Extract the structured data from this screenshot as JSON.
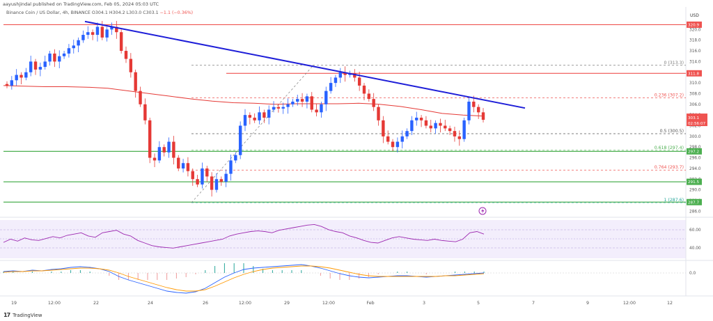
{
  "header": {
    "published_by": "aayushjindal published on TradingView.com, Feb 05, 2024 05:03 UTC",
    "symbol_prefix": "Binance Coin / US Dollar, 4h, BINANCE",
    "ohlc": "O304.1 H304.2 L303.0 C303.1",
    "change": "−1.1 (−0.36%)",
    "currency": "USD"
  },
  "footer": {
    "brand": "TradingView"
  },
  "chart_data": {
    "type": "candlestick",
    "y_range": [
      285,
      322
    ],
    "price_ticks": [
      "320.0",
      "318.0",
      "316.0",
      "314.0",
      "312.0",
      "310.0",
      "308.0",
      "306.0",
      "304.0",
      "302.0",
      "300.0",
      "298.0",
      "296.0",
      "294.0",
      "292.0",
      "290.0",
      "288.0",
      "286.0"
    ],
    "x_labels": [
      "19",
      "12:00",
      "22",
      "24",
      "26",
      "12:00",
      "29",
      "12:00",
      "Feb",
      "3",
      "5",
      "7",
      "9",
      "12:00",
      "12"
    ],
    "horizontal_levels": [
      {
        "price": 320.9,
        "label": "320.9",
        "color": "#ef5350"
      },
      {
        "price": 311.8,
        "label": "311.8",
        "color": "#ef5350"
      },
      {
        "price": 297.2,
        "label": "297.2",
        "color": "#4caf50"
      },
      {
        "price": 291.5,
        "label": "291.5",
        "color": "#4caf50"
      },
      {
        "price": 287.7,
        "label": "287.7",
        "color": "#4caf50"
      }
    ],
    "current_price": {
      "label": "303.1",
      "countdown": "02:56:07",
      "color": "#ef5350"
    },
    "fib_levels": [
      {
        "text": "0 (313.3)",
        "price": 313.3,
        "color": "#7b7b7b"
      },
      {
        "text": "0.236 (307.2)",
        "price": 307.2,
        "color": "#ef5350"
      },
      {
        "text": "0.5 (300.5)",
        "price": 300.5,
        "color": "#555555"
      },
      {
        "text": "0.618 (297.4)",
        "price": 297.4,
        "color": "#4caf50"
      },
      {
        "text": "0.764 (293.7)",
        "price": 293.7,
        "color": "#ef5350"
      },
      {
        "text": "1 (287.6)",
        "price": 287.6,
        "color": "#26a69a"
      }
    ],
    "trend_line": {
      "from": 321.5,
      "to": 305.3,
      "color": "#1e1ed8"
    },
    "ma_color": "#e53935",
    "rsi_ticks": [
      "60.00",
      "40.00"
    ],
    "macd_ticks": [
      "0.0"
    ],
    "colors": {
      "up": "#2962ff",
      "down": "#e53935"
    }
  }
}
